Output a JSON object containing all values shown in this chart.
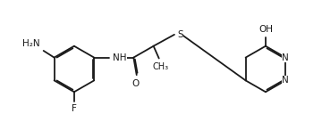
{
  "bg_color": "#ffffff",
  "line_color": "#1a1a1a",
  "text_color": "#1a1a1a",
  "lw": 1.3,
  "fs": 7.5,
  "dbo": 0.012,
  "figsize": [
    3.6,
    1.55
  ],
  "dpi": 100,
  "xlim": [
    0,
    3.6
  ],
  "ylim": [
    0,
    1.55
  ]
}
